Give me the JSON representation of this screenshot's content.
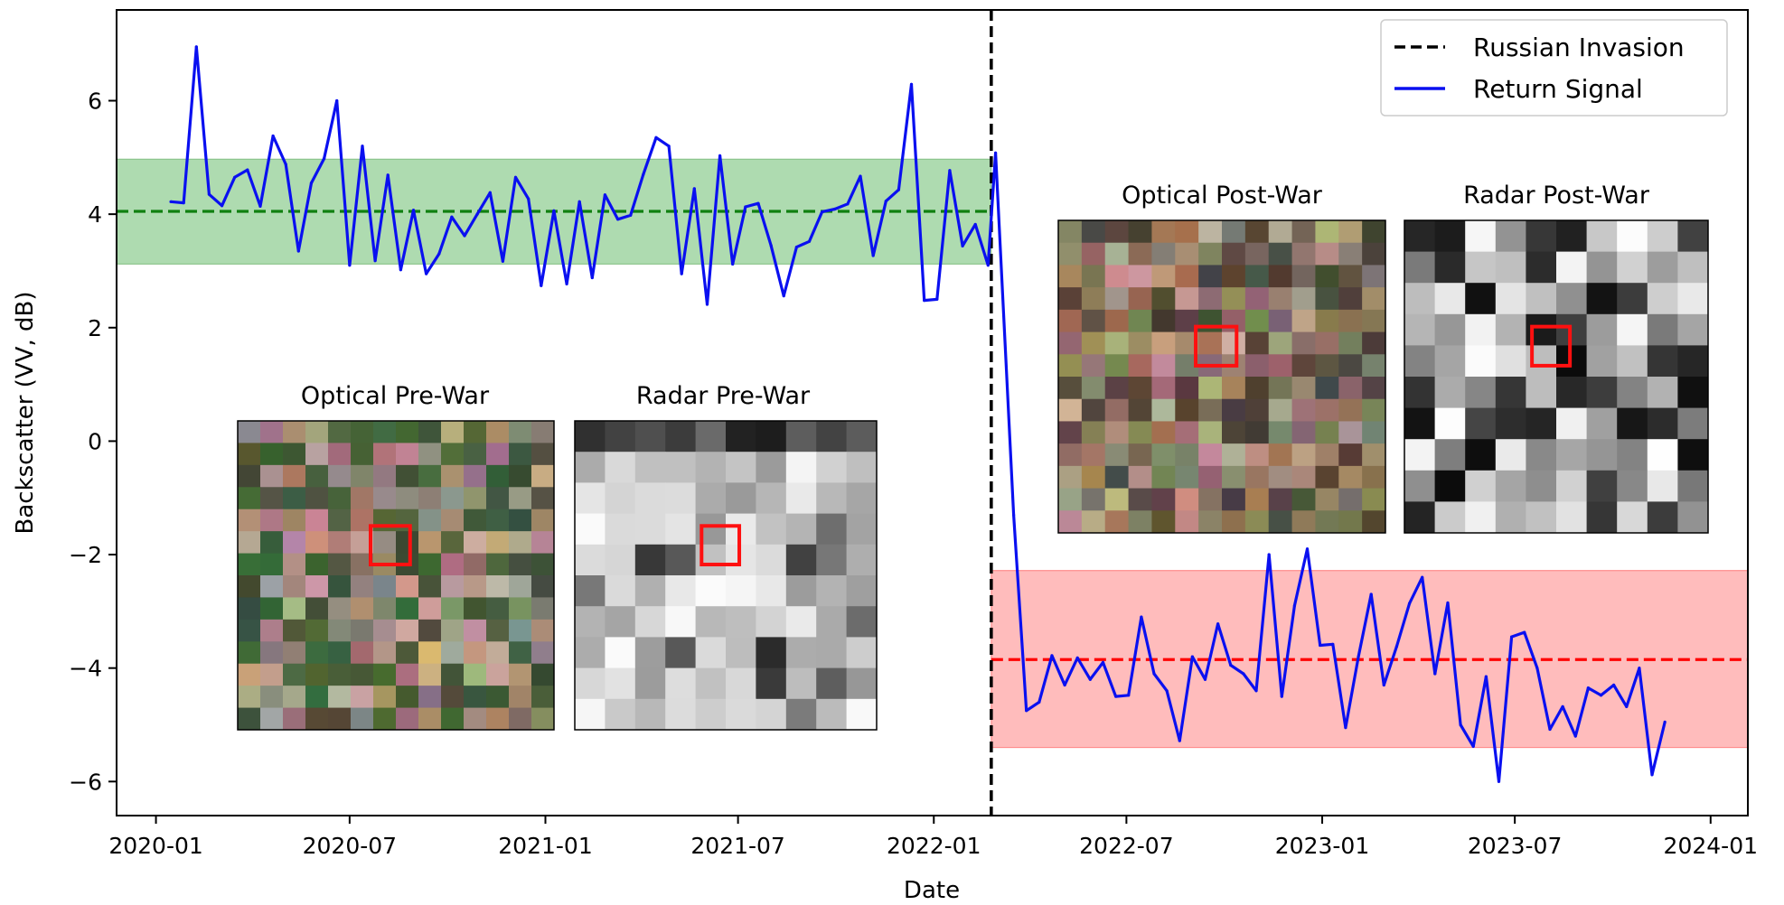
{
  "chart_data": {
    "type": "line",
    "xlabel": "Date",
    "ylabel": "Backscatter (VV, dB)",
    "xlim": [
      "2019-11-25",
      "2024-02-05"
    ],
    "ylim": [
      -6.6,
      7.6
    ],
    "x_ticks": [
      "2020-01",
      "2020-07",
      "2021-01",
      "2021-07",
      "2022-01",
      "2022-07",
      "2023-01",
      "2023-07",
      "2024-01"
    ],
    "y_ticks": [
      6,
      4,
      2,
      0,
      -2,
      -4,
      -6
    ],
    "invasion": {
      "name": "Russian Invasion",
      "date": "2022-02-24",
      "color": "#000000"
    },
    "bands": [
      {
        "start": "2019-11-25",
        "end": "2022-02-24",
        "mean": 4.05,
        "low": 3.12,
        "high": 4.97,
        "fill": "#4caf50",
        "line": "#108010"
      },
      {
        "start": "2022-02-24",
        "end": "2024-02-05",
        "mean": -3.85,
        "low": -5.4,
        "high": -2.28,
        "fill": "#ff6b6b",
        "line": "#ff0000"
      }
    ],
    "series": [
      {
        "name": "Return Signal",
        "color": "#0a10f0",
        "x": [
          "2020-01-15",
          "2020-01-27",
          "2020-02-08",
          "2020-02-20",
          "2020-03-03",
          "2020-03-15",
          "2020-03-27",
          "2020-04-08",
          "2020-04-20",
          "2020-05-02",
          "2020-05-14",
          "2020-05-26",
          "2020-06-07",
          "2020-06-19",
          "2020-07-01",
          "2020-07-13",
          "2020-07-25",
          "2020-08-06",
          "2020-08-18",
          "2020-08-30",
          "2020-09-11",
          "2020-09-23",
          "2020-10-05",
          "2020-10-17",
          "2020-10-29",
          "2020-11-10",
          "2020-11-22",
          "2020-12-04",
          "2020-12-16",
          "2020-12-28",
          "2021-01-09",
          "2021-01-21",
          "2021-02-02",
          "2021-02-14",
          "2021-02-26",
          "2021-03-10",
          "2021-03-22",
          "2021-04-03",
          "2021-04-15",
          "2021-04-27",
          "2021-05-09",
          "2021-05-21",
          "2021-06-02",
          "2021-06-14",
          "2021-06-26",
          "2021-07-08",
          "2021-07-20",
          "2021-08-01",
          "2021-08-13",
          "2021-08-25",
          "2021-09-06",
          "2021-09-18",
          "2021-09-30",
          "2021-10-12",
          "2021-10-24",
          "2021-11-05",
          "2021-11-17",
          "2021-11-29",
          "2021-12-11",
          "2021-12-23",
          "2022-01-04",
          "2022-01-16",
          "2022-01-28",
          "2022-02-09",
          "2022-02-21",
          "2022-02-28",
          "2022-03-17",
          "2022-03-29",
          "2022-04-10",
          "2022-04-22",
          "2022-05-04",
          "2022-05-16",
          "2022-05-28",
          "2022-06-09",
          "2022-06-21",
          "2022-07-03",
          "2022-07-15",
          "2022-07-27",
          "2022-08-08",
          "2022-08-20",
          "2022-09-01",
          "2022-09-13",
          "2022-09-25",
          "2022-10-07",
          "2022-10-19",
          "2022-10-31",
          "2022-11-12",
          "2022-11-24",
          "2022-12-06",
          "2022-12-18",
          "2022-12-30",
          "2023-01-11",
          "2023-01-23",
          "2023-02-04",
          "2023-02-16",
          "2023-02-28",
          "2023-03-12",
          "2023-03-24",
          "2023-04-05",
          "2023-04-17",
          "2023-04-29",
          "2023-05-11",
          "2023-05-23",
          "2023-06-04",
          "2023-06-16",
          "2023-06-28",
          "2023-07-10",
          "2023-07-22",
          "2023-08-03",
          "2023-08-15",
          "2023-08-27",
          "2023-09-08",
          "2023-09-20",
          "2023-10-02",
          "2023-10-14",
          "2023-10-26",
          "2023-11-07",
          "2023-11-19"
        ],
        "values": [
          4.22,
          4.2,
          6.95,
          4.35,
          4.15,
          4.65,
          4.78,
          4.14,
          5.38,
          4.88,
          3.35,
          4.55,
          4.98,
          6.0,
          3.1,
          5.2,
          3.18,
          4.69,
          3.02,
          4.07,
          2.95,
          3.3,
          3.95,
          3.62,
          4.0,
          4.38,
          3.17,
          4.65,
          4.27,
          2.74,
          4.06,
          2.77,
          4.22,
          2.88,
          4.34,
          3.91,
          3.98,
          4.7,
          5.35,
          5.2,
          2.95,
          4.45,
          2.41,
          5.03,
          3.12,
          4.13,
          4.19,
          3.45,
          2.56,
          3.42,
          3.52,
          4.04,
          4.09,
          4.18,
          4.67,
          3.27,
          4.23,
          4.43,
          6.29,
          2.48,
          2.5,
          4.77,
          3.44,
          3.82,
          3.1,
          5.08,
          -1.3,
          -4.75,
          -4.6,
          -3.78,
          -4.3,
          -3.82,
          -4.2,
          -3.9,
          -4.5,
          -4.48,
          -3.1,
          -4.1,
          -4.4,
          -5.28,
          -3.8,
          -4.2,
          -3.22,
          -3.95,
          -4.1,
          -4.4,
          -2.0,
          -4.5,
          -2.9,
          -1.9,
          -3.6,
          -3.58,
          -5.05,
          -3.8,
          -2.7,
          -4.3,
          -3.62,
          -2.86,
          -2.4,
          -4.1,
          -2.85,
          -5.0,
          -5.38,
          -4.15,
          -6.0,
          -3.45,
          -3.37,
          -4.0,
          -5.08,
          -4.68,
          -5.2,
          -4.35,
          -4.48,
          -4.3,
          -4.68,
          -4.0,
          -5.88,
          -4.95
        ]
      }
    ],
    "legend": {
      "placement": "top-right",
      "entries": [
        {
          "label": "Russian Invasion",
          "style": "dashed",
          "color": "#000000"
        },
        {
          "label": "Return Signal",
          "style": "solid",
          "color": "#0a10f0"
        }
      ]
    },
    "insets": [
      {
        "title": "Optical Pre-War",
        "kind": "optical"
      },
      {
        "title": "Radar Pre-War",
        "kind": "radar"
      },
      {
        "title": "Optical Post-War",
        "kind": "optical"
      },
      {
        "title": "Radar Post-War",
        "kind": "radar"
      }
    ]
  }
}
